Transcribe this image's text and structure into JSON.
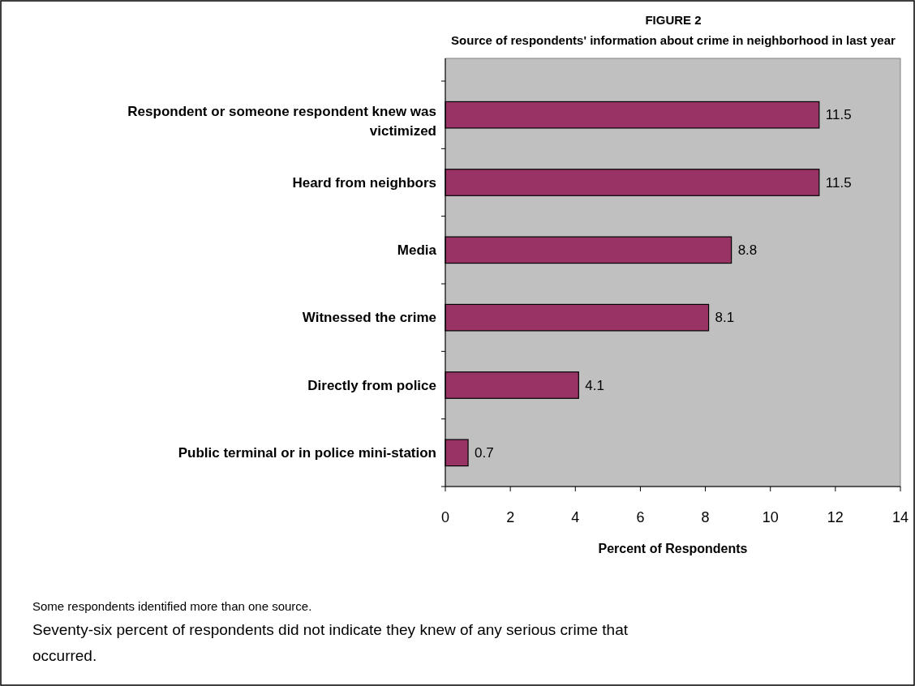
{
  "chart_data": {
    "type": "bar",
    "orientation": "horizontal",
    "title": "FIGURE 2",
    "subtitle": "Source of respondents' information about crime in neighborhood in last year",
    "categories": [
      "Respondent or someone respondent knew was victimized",
      "Heard from neighbors",
      "Media",
      "Witnessed the crime",
      "Directly from police",
      "Public terminal or in police mini-station"
    ],
    "values": [
      11.5,
      11.5,
      8.8,
      8.1,
      4.1,
      0.7
    ],
    "color": "#993366",
    "xlim": [
      0,
      14
    ],
    "xticks": [
      0,
      2,
      4,
      6,
      8,
      10,
      12,
      14
    ],
    "xlabel": "Percent of Respondents",
    "data_labels": true,
    "grid": false,
    "annotations": [
      "Some respondents identified more than one source.",
      "Seventy-six percent of respondents did not indicate they knew of any serious crime that occurred."
    ]
  }
}
